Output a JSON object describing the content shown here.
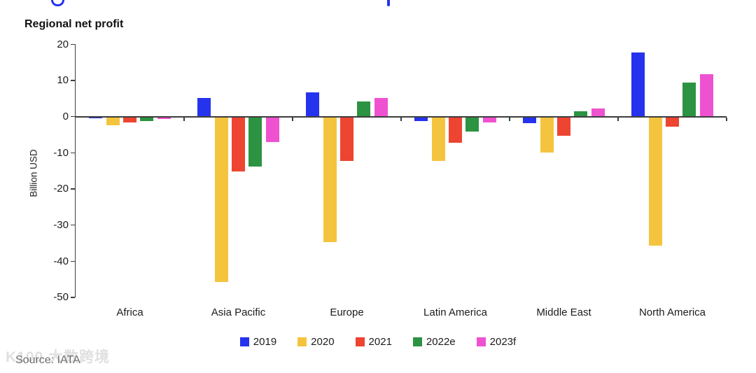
{
  "chart_data": {
    "type": "bar",
    "title": "Regional net profit",
    "ylabel": "Billion USD",
    "unit": "Billion USD",
    "categories": [
      "Africa",
      "Asia Pacific",
      "Europe",
      "Latin America",
      "Middle East",
      "North America"
    ],
    "series": [
      {
        "name": "2019",
        "color": "#2633ee",
        "values": [
          -0.3,
          4.9,
          6.5,
          -1.0,
          -1.6,
          17.5
        ]
      },
      {
        "name": "2020",
        "color": "#f5c43e",
        "values": [
          -2.2,
          -45.5,
          -34.5,
          -12.0,
          -9.8,
          -35.5
        ]
      },
      {
        "name": "2021",
        "color": "#ee4432",
        "values": [
          -1.5,
          -15.0,
          -12.0,
          -7.0,
          -5.2,
          -2.5
        ]
      },
      {
        "name": "2022e",
        "color": "#2c9342",
        "values": [
          -1.0,
          -13.7,
          4.0,
          -4.0,
          1.3,
          9.2
        ]
      },
      {
        "name": "2023f",
        "color": "#ef52d1",
        "values": [
          -0.5,
          -6.9,
          5.0,
          -1.5,
          2.0,
          11.5
        ]
      }
    ],
    "ylim": [
      -50,
      20
    ],
    "yticks": [
      20,
      10,
      0,
      -10,
      -20,
      -30,
      -40,
      -50
    ],
    "grid": false,
    "legend_position": "bottom"
  },
  "footer": {
    "source": "Source: IATA",
    "watermark": "K100 大数跨境"
  }
}
